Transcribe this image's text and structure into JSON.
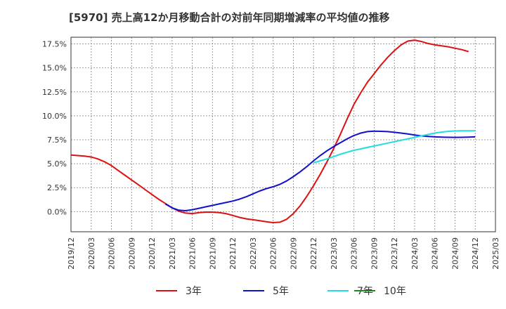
{
  "chart_data": {
    "type": "line",
    "title": "[5970]  売上高12か月移動合計の対前年同期増減率の平均値の推移",
    "xlabel": "",
    "ylabel": "",
    "x_ticks": [
      "2019/12",
      "2020/03",
      "2020/06",
      "2020/09",
      "2020/12",
      "2021/03",
      "2021/06",
      "2021/09",
      "2021/12",
      "2022/03",
      "2022/06",
      "2022/09",
      "2022/12",
      "2023/03",
      "2023/06",
      "2023/09",
      "2023/12",
      "2024/03",
      "2024/06",
      "2024/09",
      "2024/12",
      "2025/03"
    ],
    "y_ticks": [
      "0.0%",
      "2.5%",
      "5.0%",
      "7.5%",
      "10.0%",
      "12.5%",
      "15.0%",
      "17.5%"
    ],
    "y_tick_values": [
      0,
      2.5,
      5,
      7.5,
      10,
      12.5,
      15,
      17.5
    ],
    "ylim": [
      -2.1,
      18.2
    ],
    "grid": true,
    "legend_position": "bottom",
    "series": [
      {
        "name": "3年",
        "color": "#dd1111",
        "points": [
          [
            "2019/12",
            5.9
          ],
          [
            "2020/01",
            5.85
          ],
          [
            "2020/02",
            5.8
          ],
          [
            "2020/03",
            5.7
          ],
          [
            "2020/04",
            5.5
          ],
          [
            "2020/05",
            5.2
          ],
          [
            "2020/06",
            4.8
          ],
          [
            "2020/07",
            4.3
          ],
          [
            "2020/08",
            3.8
          ],
          [
            "2020/09",
            3.3
          ],
          [
            "2020/10",
            2.8
          ],
          [
            "2020/11",
            2.3
          ],
          [
            "2020/12",
            1.8
          ],
          [
            "2021/01",
            1.3
          ],
          [
            "2021/02",
            0.85
          ],
          [
            "2021/03",
            0.4
          ],
          [
            "2021/04",
            0.05
          ],
          [
            "2021/05",
            -0.15
          ],
          [
            "2021/06",
            -0.2
          ],
          [
            "2021/07",
            -0.1
          ],
          [
            "2021/08",
            -0.05
          ],
          [
            "2021/09",
            -0.05
          ],
          [
            "2021/10",
            -0.1
          ],
          [
            "2021/11",
            -0.2
          ],
          [
            "2021/12",
            -0.4
          ],
          [
            "2022/01",
            -0.6
          ],
          [
            "2022/02",
            -0.75
          ],
          [
            "2022/03",
            -0.85
          ],
          [
            "2022/04",
            -0.95
          ],
          [
            "2022/05",
            -1.05
          ],
          [
            "2022/06",
            -1.15
          ],
          [
            "2022/07",
            -1.1
          ],
          [
            "2022/08",
            -0.8
          ],
          [
            "2022/09",
            -0.2
          ],
          [
            "2022/10",
            0.6
          ],
          [
            "2022/11",
            1.6
          ],
          [
            "2022/12",
            2.7
          ],
          [
            "2023/01",
            3.9
          ],
          [
            "2023/02",
            5.2
          ],
          [
            "2023/03",
            6.6
          ],
          [
            "2023/04",
            8.1
          ],
          [
            "2023/05",
            9.7
          ],
          [
            "2023/06",
            11.2
          ],
          [
            "2023/07",
            12.4
          ],
          [
            "2023/08",
            13.5
          ],
          [
            "2023/09",
            14.4
          ],
          [
            "2023/10",
            15.3
          ],
          [
            "2023/11",
            16.1
          ],
          [
            "2023/12",
            16.8
          ],
          [
            "2024/01",
            17.4
          ],
          [
            "2024/02",
            17.8
          ],
          [
            "2024/03",
            17.9
          ],
          [
            "2024/04",
            17.75
          ],
          [
            "2024/05",
            17.55
          ],
          [
            "2024/06",
            17.4
          ],
          [
            "2024/07",
            17.3
          ],
          [
            "2024/08",
            17.2
          ],
          [
            "2024/09",
            17.05
          ],
          [
            "2024/10",
            16.9
          ],
          [
            "2024/11",
            16.7
          ]
        ]
      },
      {
        "name": "5年",
        "color": "#1111cc",
        "points": [
          [
            "2021/02",
            0.8
          ],
          [
            "2021/03",
            0.4
          ],
          [
            "2021/04",
            0.15
          ],
          [
            "2021/05",
            0.1
          ],
          [
            "2021/06",
            0.2
          ],
          [
            "2021/07",
            0.35
          ],
          [
            "2021/08",
            0.5
          ],
          [
            "2021/09",
            0.65
          ],
          [
            "2021/10",
            0.8
          ],
          [
            "2021/11",
            0.95
          ],
          [
            "2021/12",
            1.1
          ],
          [
            "2022/01",
            1.3
          ],
          [
            "2022/02",
            1.55
          ],
          [
            "2022/03",
            1.85
          ],
          [
            "2022/04",
            2.15
          ],
          [
            "2022/05",
            2.4
          ],
          [
            "2022/06",
            2.6
          ],
          [
            "2022/07",
            2.85
          ],
          [
            "2022/08",
            3.2
          ],
          [
            "2022/09",
            3.65
          ],
          [
            "2022/10",
            4.15
          ],
          [
            "2022/11",
            4.7
          ],
          [
            "2022/12",
            5.3
          ],
          [
            "2023/01",
            5.85
          ],
          [
            "2023/02",
            6.35
          ],
          [
            "2023/03",
            6.8
          ],
          [
            "2023/04",
            7.2
          ],
          [
            "2023/05",
            7.6
          ],
          [
            "2023/06",
            7.95
          ],
          [
            "2023/07",
            8.2
          ],
          [
            "2023/08",
            8.35
          ],
          [
            "2023/09",
            8.4
          ],
          [
            "2023/10",
            8.38
          ],
          [
            "2023/11",
            8.35
          ],
          [
            "2023/12",
            8.28
          ],
          [
            "2024/01",
            8.2
          ],
          [
            "2024/02",
            8.1
          ],
          [
            "2024/03",
            8.0
          ],
          [
            "2024/04",
            7.9
          ],
          [
            "2024/05",
            7.85
          ],
          [
            "2024/06",
            7.8
          ],
          [
            "2024/07",
            7.78
          ],
          [
            "2024/08",
            7.76
          ],
          [
            "2024/09",
            7.75
          ],
          [
            "2024/10",
            7.76
          ],
          [
            "2024/11",
            7.78
          ],
          [
            "2024/12",
            7.8
          ]
        ]
      },
      {
        "name": "7年",
        "color": "#22dddd",
        "points": [
          [
            "2022/12",
            5.1
          ],
          [
            "2023/01",
            5.3
          ],
          [
            "2023/02",
            5.5
          ],
          [
            "2023/03",
            5.75
          ],
          [
            "2023/04",
            6.0
          ],
          [
            "2023/05",
            6.2
          ],
          [
            "2023/06",
            6.4
          ],
          [
            "2023/07",
            6.55
          ],
          [
            "2023/08",
            6.7
          ],
          [
            "2023/09",
            6.85
          ],
          [
            "2023/10",
            7.0
          ],
          [
            "2023/11",
            7.15
          ],
          [
            "2023/12",
            7.3
          ],
          [
            "2024/01",
            7.45
          ],
          [
            "2024/02",
            7.6
          ],
          [
            "2024/03",
            7.75
          ],
          [
            "2024/04",
            7.9
          ],
          [
            "2024/05",
            8.05
          ],
          [
            "2024/06",
            8.2
          ],
          [
            "2024/07",
            8.3
          ],
          [
            "2024/08",
            8.38
          ],
          [
            "2024/09",
            8.42
          ],
          [
            "2024/10",
            8.44
          ],
          [
            "2024/11",
            8.44
          ],
          [
            "2024/12",
            8.43
          ]
        ]
      },
      {
        "name": "10年",
        "color": "#228822",
        "points": []
      }
    ]
  }
}
